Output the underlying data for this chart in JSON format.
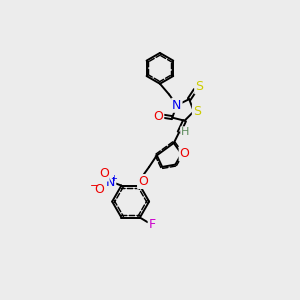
{
  "background_color": "#ececec",
  "atom_colors": {
    "C": "#000000",
    "H": "#5a8a5a",
    "N": "#0000ee",
    "O": "#ee0000",
    "S": "#cccc00",
    "F": "#cc00cc"
  },
  "bond_color": "#000000",
  "font_size": 8,
  "line_width": 1.4
}
